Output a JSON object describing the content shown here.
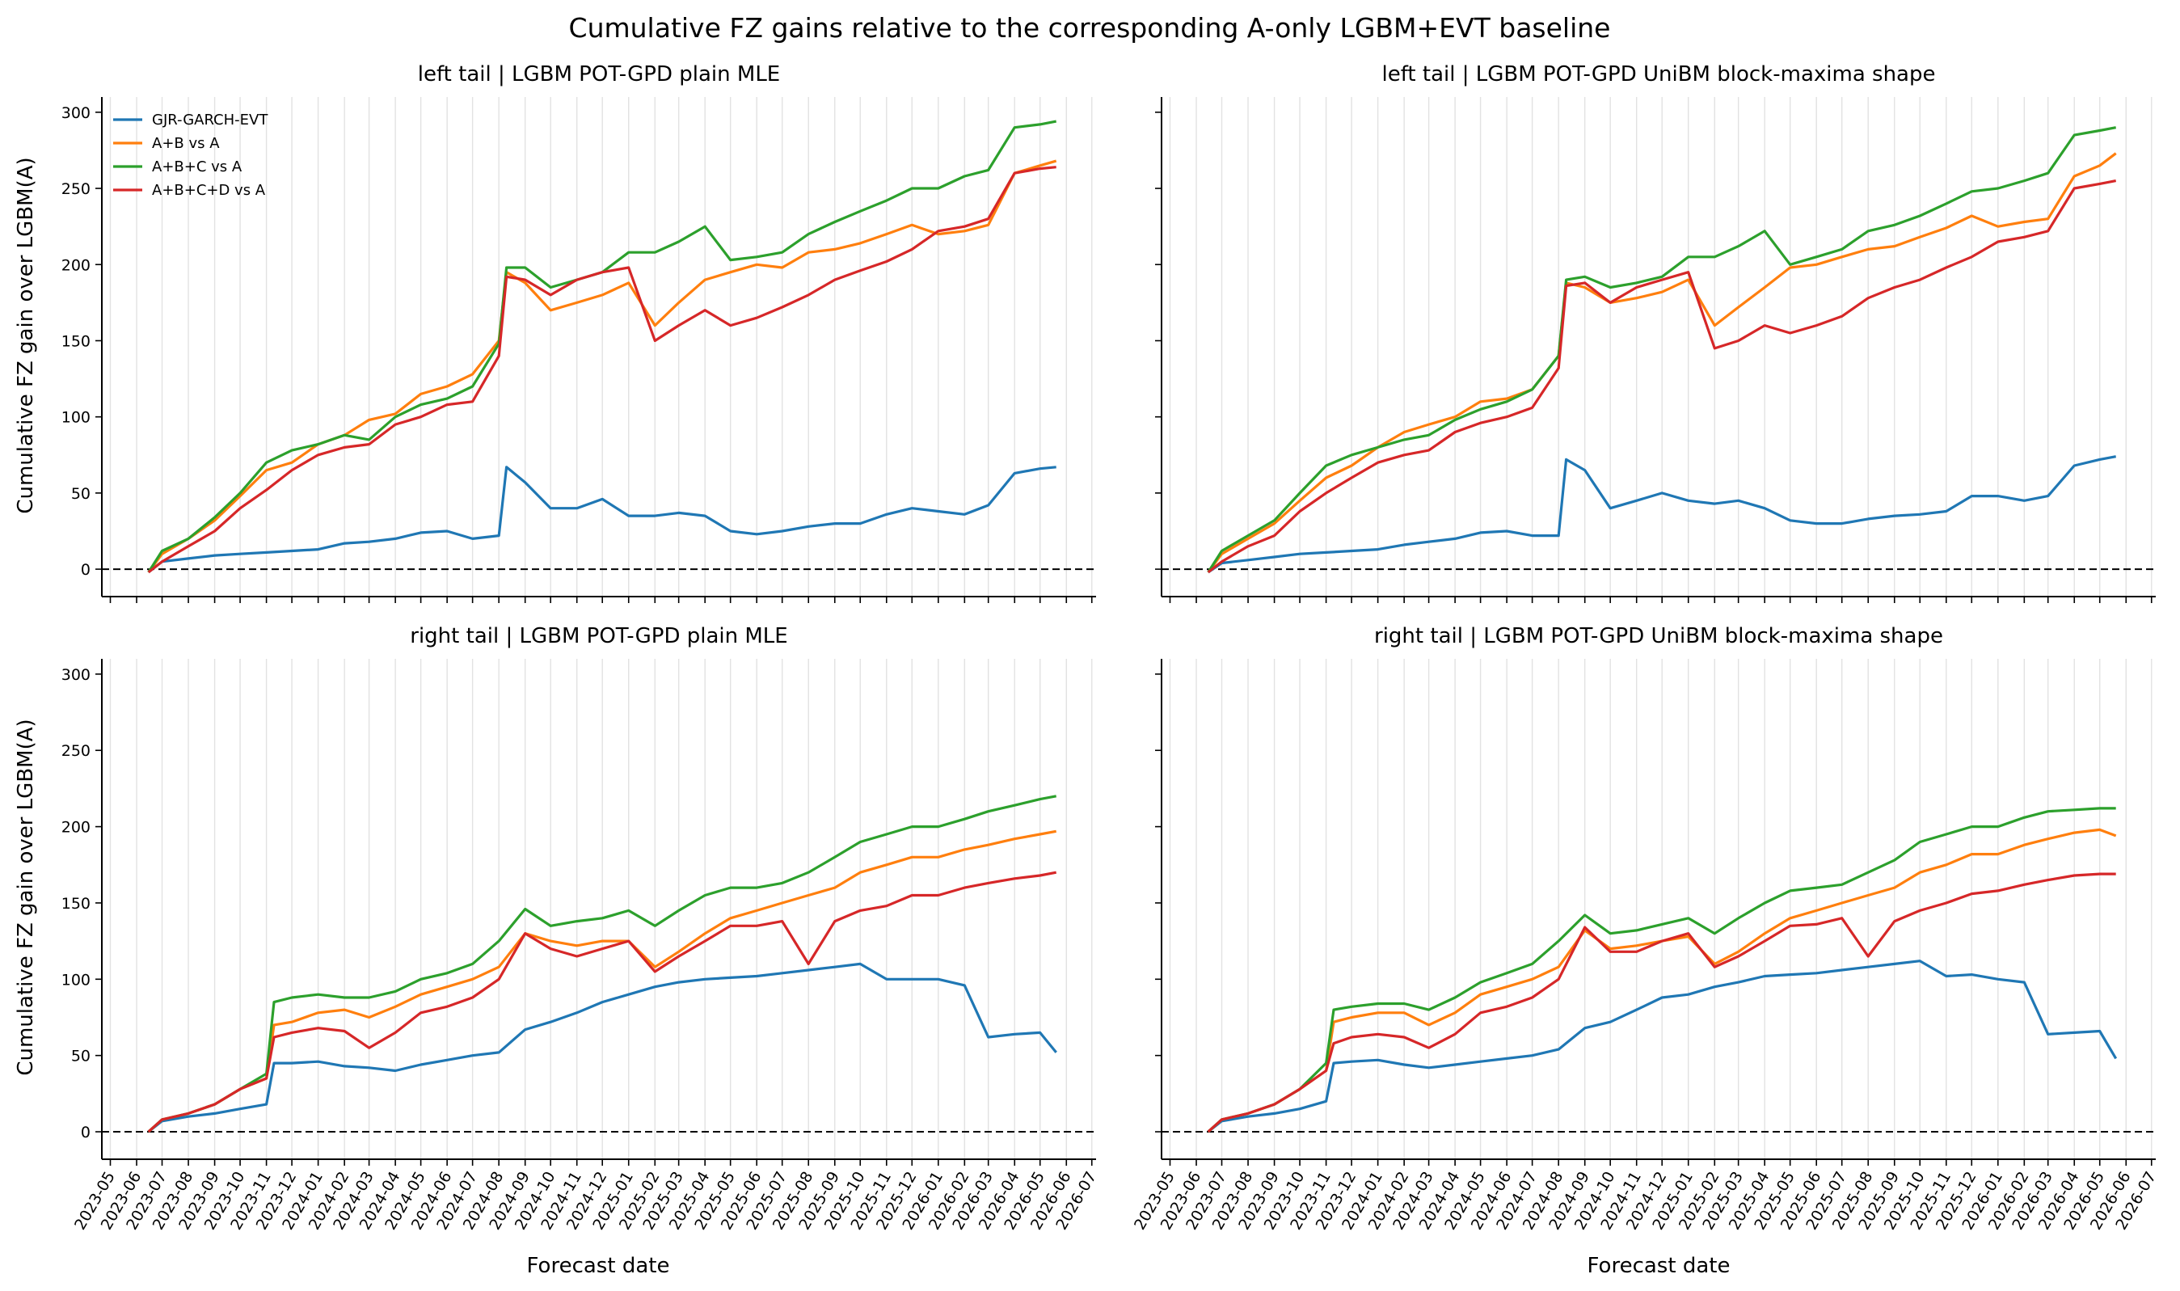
{
  "figure": {
    "suptitle": "Cumulative FZ gains relative to the corresponding A-only LGBM+EVT baseline",
    "xlabel": "Forecast date",
    "ylabel": "Cumulative FZ gain over LGBM(A)"
  },
  "colors": {
    "GJR-GARCH-EVT": "#1f77b4",
    "A+B vs A": "#ff7f0e",
    "A+B+C vs A": "#2ca02c",
    "A+B+C+D vs A": "#d62728",
    "grid": "#e2e2e2",
    "baseline": "#000000"
  },
  "legend": [
    "GJR-GARCH-EVT",
    "A+B vs A",
    "A+B+C vs A",
    "A+B+C+D vs A"
  ],
  "x_ticks": [
    "2023-05",
    "2023-06",
    "2023-07",
    "2023-08",
    "2023-09",
    "2023-10",
    "2023-11",
    "2023-12",
    "2024-01",
    "2024-02",
    "2024-03",
    "2024-04",
    "2024-05",
    "2024-06",
    "2024-07",
    "2024-08",
    "2024-09",
    "2024-10",
    "2024-11",
    "2024-12",
    "2025-01",
    "2025-02",
    "2025-03",
    "2025-04",
    "2025-05",
    "2025-06",
    "2025-07",
    "2025-08",
    "2025-09",
    "2025-10",
    "2025-11",
    "2025-12",
    "2026-01",
    "2026-02",
    "2026-03",
    "2026-04",
    "2026-05",
    "2026-06",
    "2026-07"
  ],
  "y_ticks": [
    0,
    50,
    100,
    150,
    200,
    250,
    300
  ],
  "chart_data": [
    {
      "type": "line",
      "title": "left tail | LGBM POT-GPD plain MLE",
      "xlabel": "",
      "ylabel": "Cumulative FZ gain over LGBM(A)",
      "ylim": [
        -18,
        310
      ],
      "legend_position": "top-left",
      "grid": "vertical",
      "x": [
        "2023-06-15",
        "2023-07-01",
        "2023-08-01",
        "2023-09-01",
        "2023-10-01",
        "2023-11-01",
        "2023-12-01",
        "2024-01-01",
        "2024-02-01",
        "2024-03-01",
        "2024-04-01",
        "2024-05-01",
        "2024-06-01",
        "2024-07-01",
        "2024-08-01",
        "2024-08-10",
        "2024-09-01",
        "2024-10-01",
        "2024-11-01",
        "2024-12-01",
        "2025-01-01",
        "2025-02-01",
        "2025-03-01",
        "2025-04-01",
        "2025-05-01",
        "2025-06-01",
        "2025-07-01",
        "2025-08-01",
        "2025-09-01",
        "2025-10-01",
        "2025-11-01",
        "2025-12-01",
        "2026-01-01",
        "2026-02-01",
        "2026-03-01",
        "2026-04-01",
        "2026-05-01",
        "2026-05-20"
      ],
      "series": [
        {
          "name": "GJR-GARCH-EVT",
          "values": [
            -2,
            5,
            7,
            9,
            10,
            11,
            12,
            13,
            17,
            18,
            20,
            24,
            25,
            20,
            22,
            67,
            57,
            40,
            40,
            46,
            35,
            35,
            37,
            35,
            25,
            23,
            25,
            28,
            30,
            30,
            36,
            40,
            38,
            36,
            42,
            63,
            66,
            67
          ]
        },
        {
          "name": "A+B vs A",
          "values": [
            -2,
            10,
            20,
            32,
            48,
            65,
            70,
            82,
            88,
            98,
            102,
            115,
            120,
            128,
            150,
            195,
            188,
            170,
            175,
            180,
            188,
            160,
            175,
            190,
            195,
            200,
            198,
            208,
            210,
            214,
            220,
            226,
            220,
            222,
            226,
            260,
            265,
            268
          ]
        },
        {
          "name": "A+B+C vs A",
          "values": [
            -2,
            12,
            20,
            34,
            50,
            70,
            78,
            82,
            88,
            85,
            100,
            108,
            112,
            120,
            148,
            198,
            198,
            185,
            190,
            195,
            208,
            208,
            215,
            225,
            203,
            205,
            208,
            220,
            228,
            235,
            242,
            250,
            250,
            258,
            262,
            290,
            292,
            294
          ]
        },
        {
          "name": "A+B+C+D vs A",
          "values": [
            -2,
            5,
            15,
            25,
            40,
            52,
            65,
            75,
            80,
            82,
            95,
            100,
            108,
            110,
            140,
            192,
            190,
            180,
            190,
            195,
            198,
            150,
            160,
            170,
            160,
            165,
            172,
            180,
            190,
            196,
            202,
            210,
            222,
            225,
            230,
            260,
            263,
            264
          ]
        }
      ]
    },
    {
      "type": "line",
      "title": "left tail | LGBM POT-GPD UniBM block-maxima shape",
      "xlabel": "",
      "ylabel": "",
      "ylim": [
        -18,
        310
      ],
      "legend_position": "none",
      "grid": "vertical",
      "x": [
        "2023-06-15",
        "2023-07-01",
        "2023-08-01",
        "2023-09-01",
        "2023-10-01",
        "2023-11-01",
        "2023-12-01",
        "2024-01-01",
        "2024-02-01",
        "2024-03-01",
        "2024-04-01",
        "2024-05-01",
        "2024-06-01",
        "2024-07-01",
        "2024-08-01",
        "2024-08-10",
        "2024-09-01",
        "2024-10-01",
        "2024-11-01",
        "2024-12-01",
        "2025-01-01",
        "2025-02-01",
        "2025-03-01",
        "2025-04-01",
        "2025-05-01",
        "2025-06-01",
        "2025-07-01",
        "2025-08-01",
        "2025-09-01",
        "2025-10-01",
        "2025-11-01",
        "2025-12-01",
        "2026-01-01",
        "2026-02-01",
        "2026-03-01",
        "2026-04-01",
        "2026-05-01",
        "2026-05-20"
      ],
      "series": [
        {
          "name": "GJR-GARCH-EVT",
          "values": [
            -2,
            4,
            6,
            8,
            10,
            11,
            12,
            13,
            16,
            18,
            20,
            24,
            25,
            22,
            22,
            72,
            65,
            40,
            45,
            50,
            45,
            43,
            45,
            40,
            32,
            30,
            30,
            33,
            35,
            36,
            38,
            48,
            48,
            45,
            48,
            68,
            72,
            74
          ]
        },
        {
          "name": "A+B vs A",
          "values": [
            -2,
            10,
            20,
            30,
            45,
            60,
            68,
            80,
            90,
            95,
            100,
            110,
            112,
            118,
            140,
            188,
            185,
            175,
            178,
            182,
            190,
            160,
            172,
            185,
            198,
            200,
            205,
            210,
            212,
            218,
            224,
            232,
            225,
            228,
            230,
            258,
            265,
            273
          ]
        },
        {
          "name": "A+B+C vs A",
          "values": [
            -2,
            12,
            22,
            32,
            50,
            68,
            75,
            80,
            85,
            88,
            98,
            105,
            110,
            118,
            140,
            190,
            192,
            185,
            188,
            192,
            205,
            205,
            212,
            222,
            200,
            205,
            210,
            222,
            226,
            232,
            240,
            248,
            250,
            255,
            260,
            285,
            288,
            290
          ]
        },
        {
          "name": "A+B+C+D vs A",
          "values": [
            -2,
            5,
            15,
            22,
            38,
            50,
            60,
            70,
            75,
            78,
            90,
            96,
            100,
            106,
            132,
            186,
            188,
            175,
            185,
            190,
            195,
            145,
            150,
            160,
            155,
            160,
            166,
            178,
            185,
            190,
            198,
            205,
            215,
            218,
            222,
            250,
            253,
            255
          ]
        }
      ]
    },
    {
      "type": "line",
      "title": "right tail | LGBM POT-GPD plain MLE",
      "xlabel": "Forecast date",
      "ylabel": "Cumulative FZ gain over LGBM(A)",
      "ylim": [
        -18,
        310
      ],
      "legend_position": "none",
      "grid": "vertical",
      "x": [
        "2023-06-15",
        "2023-07-01",
        "2023-08-01",
        "2023-09-01",
        "2023-10-01",
        "2023-11-01",
        "2023-11-10",
        "2023-12-01",
        "2024-01-01",
        "2024-02-01",
        "2024-03-01",
        "2024-04-01",
        "2024-05-01",
        "2024-06-01",
        "2024-07-01",
        "2024-08-01",
        "2024-09-01",
        "2024-10-01",
        "2024-11-01",
        "2024-12-01",
        "2025-01-01",
        "2025-02-01",
        "2025-03-01",
        "2025-04-01",
        "2025-05-01",
        "2025-06-01",
        "2025-07-01",
        "2025-08-01",
        "2025-09-01",
        "2025-10-01",
        "2025-11-01",
        "2025-12-01",
        "2026-01-01",
        "2026-02-01",
        "2026-03-01",
        "2026-04-01",
        "2026-05-01",
        "2026-05-20"
      ],
      "series": [
        {
          "name": "GJR-GARCH-EVT",
          "values": [
            0,
            7,
            10,
            12,
            15,
            18,
            45,
            45,
            46,
            43,
            42,
            40,
            44,
            47,
            50,
            52,
            67,
            72,
            78,
            85,
            90,
            95,
            98,
            100,
            101,
            102,
            104,
            106,
            108,
            110,
            100,
            100,
            100,
            96,
            62,
            64,
            65,
            52
          ]
        },
        {
          "name": "A+B vs A",
          "values": [
            0,
            8,
            12,
            18,
            28,
            35,
            70,
            72,
            78,
            80,
            75,
            82,
            90,
            95,
            100,
            108,
            130,
            125,
            122,
            125,
            125,
            108,
            118,
            130,
            140,
            145,
            150,
            155,
            160,
            170,
            175,
            180,
            180,
            185,
            188,
            192,
            195,
            197
          ]
        },
        {
          "name": "A+B+C vs A",
          "values": [
            0,
            8,
            12,
            18,
            28,
            38,
            85,
            88,
            90,
            88,
            88,
            92,
            100,
            104,
            110,
            125,
            146,
            135,
            138,
            140,
            145,
            135,
            145,
            155,
            160,
            160,
            163,
            170,
            180,
            190,
            195,
            200,
            200,
            205,
            210,
            214,
            218,
            220
          ]
        },
        {
          "name": "A+B+C+D vs A",
          "values": [
            0,
            8,
            12,
            18,
            28,
            35,
            62,
            65,
            68,
            66,
            55,
            65,
            78,
            82,
            88,
            100,
            130,
            120,
            115,
            120,
            125,
            105,
            115,
            125,
            135,
            135,
            138,
            110,
            138,
            145,
            148,
            155,
            155,
            160,
            163,
            166,
            168,
            170
          ]
        }
      ]
    },
    {
      "type": "line",
      "title": "right tail | LGBM POT-GPD UniBM block-maxima shape",
      "xlabel": "Forecast date",
      "ylabel": "",
      "ylim": [
        -18,
        310
      ],
      "legend_position": "none",
      "grid": "vertical",
      "x": [
        "2023-06-15",
        "2023-07-01",
        "2023-08-01",
        "2023-09-01",
        "2023-10-01",
        "2023-11-01",
        "2023-11-10",
        "2023-12-01",
        "2024-01-01",
        "2024-02-01",
        "2024-03-01",
        "2024-04-01",
        "2024-05-01",
        "2024-06-01",
        "2024-07-01",
        "2024-08-01",
        "2024-09-01",
        "2024-10-01",
        "2024-11-01",
        "2024-12-01",
        "2025-01-01",
        "2025-02-01",
        "2025-03-01",
        "2025-04-01",
        "2025-05-01",
        "2025-06-01",
        "2025-07-01",
        "2025-08-01",
        "2025-09-01",
        "2025-10-01",
        "2025-11-01",
        "2025-12-01",
        "2026-01-01",
        "2026-02-01",
        "2026-03-01",
        "2026-04-01",
        "2026-05-01",
        "2026-05-20"
      ],
      "series": [
        {
          "name": "GJR-GARCH-EVT",
          "values": [
            0,
            7,
            10,
            12,
            15,
            20,
            45,
            46,
            47,
            44,
            42,
            44,
            46,
            48,
            50,
            54,
            68,
            72,
            80,
            88,
            90,
            95,
            98,
            102,
            103,
            104,
            106,
            108,
            110,
            112,
            102,
            103,
            100,
            98,
            64,
            65,
            66,
            48
          ]
        },
        {
          "name": "A+B vs A",
          "values": [
            0,
            8,
            12,
            18,
            28,
            40,
            72,
            75,
            78,
            78,
            70,
            78,
            90,
            95,
            100,
            108,
            132,
            120,
            122,
            125,
            128,
            110,
            118,
            130,
            140,
            145,
            150,
            155,
            160,
            170,
            175,
            182,
            182,
            188,
            192,
            196,
            198,
            194
          ]
        },
        {
          "name": "A+B+C vs A",
          "values": [
            0,
            8,
            12,
            18,
            28,
            45,
            80,
            82,
            84,
            84,
            80,
            88,
            98,
            104,
            110,
            125,
            142,
            130,
            132,
            136,
            140,
            130,
            140,
            150,
            158,
            160,
            162,
            170,
            178,
            190,
            195,
            200,
            200,
            206,
            210,
            211,
            212,
            212
          ]
        },
        {
          "name": "A+B+C+D vs A",
          "values": [
            0,
            8,
            12,
            18,
            28,
            40,
            58,
            62,
            64,
            62,
            55,
            64,
            78,
            82,
            88,
            100,
            134,
            118,
            118,
            125,
            130,
            108,
            115,
            125,
            135,
            136,
            140,
            115,
            138,
            145,
            150,
            156,
            158,
            162,
            165,
            168,
            169,
            169
          ]
        }
      ]
    }
  ]
}
